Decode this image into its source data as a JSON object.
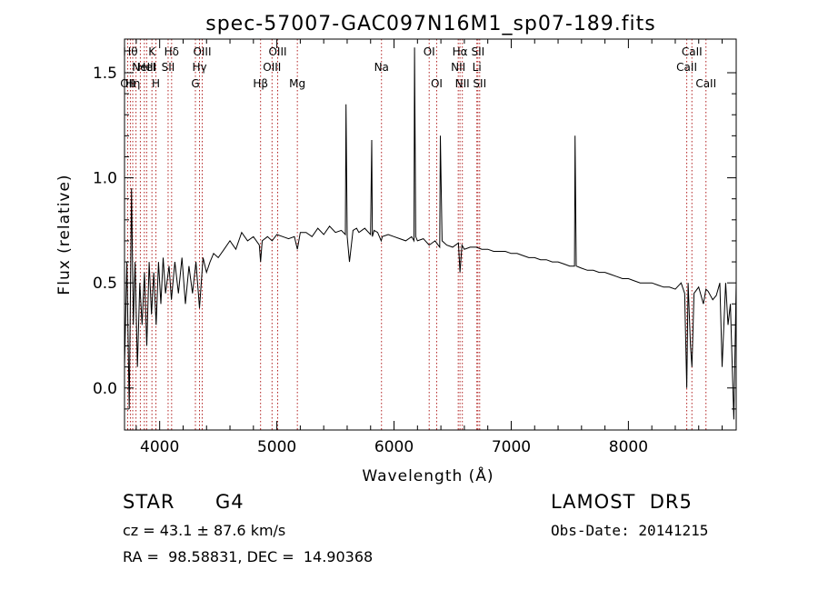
{
  "chart_data": {
    "type": "line",
    "title": "spec-57007-GAC097N16M1_sp07-189.fits",
    "xlabel": "Wavelength (Å)",
    "ylabel": "Flux (relative)",
    "xlim": [
      3700,
      8920
    ],
    "ylim": [
      -0.2,
      1.66
    ],
    "x_ticks": [
      4000,
      5000,
      6000,
      7000,
      8000
    ],
    "y_ticks": [
      0.0,
      0.5,
      1.0,
      1.5
    ],
    "x_tick_labels": [
      "4000",
      "5000",
      "6000",
      "7000",
      "8000"
    ],
    "y_tick_labels": [
      "0.0",
      "0.5",
      "1.0",
      "1.5"
    ],
    "grid": false,
    "series": [
      {
        "x": [
          3700,
          3720,
          3740,
          3760,
          3775,
          3790,
          3810,
          3830,
          3850,
          3870,
          3890,
          3910,
          3930,
          3950,
          3970,
          3990,
          4010,
          4030,
          4050,
          4080,
          4100,
          4130,
          4160,
          4190,
          4220,
          4250,
          4280,
          4310,
          4340,
          4370,
          4400,
          4430,
          4460,
          4500,
          4550,
          4600,
          4650,
          4700,
          4750,
          4800,
          4850,
          4861,
          4875,
          4920,
          4960,
          5000,
          5050,
          5100,
          5150,
          5175,
          5200,
          5250,
          5300,
          5350,
          5400,
          5450,
          5500,
          5550,
          5585,
          5590,
          5600,
          5620,
          5650,
          5680,
          5700,
          5750,
          5800,
          5810,
          5815,
          5830,
          5860,
          5890,
          5900,
          5950,
          6000,
          6050,
          6100,
          6150,
          6170,
          6175,
          6185,
          6200,
          6250,
          6300,
          6350,
          6390,
          6395,
          6410,
          6450,
          6500,
          6550,
          6563,
          6580,
          6600,
          6650,
          6700,
          6750,
          6800,
          6850,
          6900,
          6950,
          7000,
          7050,
          7100,
          7150,
          7200,
          7250,
          7300,
          7350,
          7400,
          7450,
          7500,
          7540,
          7545,
          7555,
          7600,
          7650,
          7700,
          7750,
          7800,
          7850,
          7900,
          7950,
          8000,
          8050,
          8100,
          8150,
          8200,
          8250,
          8300,
          8350,
          8400,
          8450,
          8480,
          8498,
          8510,
          8530,
          8542,
          8560,
          8600,
          8640,
          8662,
          8680,
          8720,
          8750,
          8780,
          8800,
          8830,
          8850,
          8870,
          8900,
          8920
        ],
        "y": [
          0.1,
          0.6,
          -0.1,
          0.95,
          0.3,
          0.6,
          0.1,
          0.5,
          0.3,
          0.55,
          0.2,
          0.6,
          0.35,
          0.55,
          0.3,
          0.6,
          0.4,
          0.62,
          0.45,
          0.58,
          0.42,
          0.6,
          0.45,
          0.62,
          0.4,
          0.58,
          0.45,
          0.6,
          0.38,
          0.62,
          0.55,
          0.6,
          0.64,
          0.62,
          0.66,
          0.7,
          0.66,
          0.74,
          0.7,
          0.72,
          0.68,
          0.6,
          0.7,
          0.72,
          0.7,
          0.73,
          0.72,
          0.71,
          0.72,
          0.66,
          0.74,
          0.74,
          0.72,
          0.76,
          0.73,
          0.77,
          0.74,
          0.75,
          0.73,
          1.35,
          0.72,
          0.6,
          0.75,
          0.76,
          0.74,
          0.76,
          0.73,
          1.18,
          0.72,
          0.75,
          0.74,
          0.7,
          0.72,
          0.73,
          0.72,
          0.71,
          0.7,
          0.72,
          0.7,
          1.62,
          0.72,
          0.7,
          0.71,
          0.68,
          0.7,
          0.67,
          1.2,
          0.7,
          0.68,
          0.67,
          0.69,
          0.55,
          0.68,
          0.66,
          0.67,
          0.67,
          0.66,
          0.66,
          0.65,
          0.65,
          0.65,
          0.64,
          0.64,
          0.63,
          0.62,
          0.62,
          0.61,
          0.61,
          0.6,
          0.6,
          0.59,
          0.58,
          0.58,
          1.2,
          0.58,
          0.57,
          0.56,
          0.56,
          0.55,
          0.55,
          0.54,
          0.53,
          0.52,
          0.52,
          0.51,
          0.5,
          0.5,
          0.5,
          0.49,
          0.48,
          0.48,
          0.47,
          0.5,
          0.45,
          0.0,
          0.5,
          0.2,
          0.1,
          0.45,
          0.48,
          0.4,
          0.47,
          0.46,
          0.42,
          0.44,
          0.5,
          0.1,
          0.5,
          0.3,
          0.4,
          -0.15,
          0.5
        ]
      }
    ],
    "line_markers": [
      {
        "wl": 3727,
        "label": "OII",
        "row": 3
      },
      {
        "wl": 3750,
        "label": "Hθ",
        "row": 1
      },
      {
        "wl": 3770,
        "label": "Hη",
        "row": 3
      },
      {
        "wl": 3798,
        "label": "",
        "row": 0
      },
      {
        "wl": 3835,
        "label": "",
        "row": 0
      },
      {
        "wl": 3869,
        "label": "NeIII",
        "row": 2
      },
      {
        "wl": 3889,
        "label": "HeI",
        "row": 2
      },
      {
        "wl": 3934,
        "label": "K",
        "row": 1
      },
      {
        "wl": 3968,
        "label": "H",
        "row": 3
      },
      {
        "wl": 4072,
        "label": "SII",
        "row": 2
      },
      {
        "wl": 4102,
        "label": "Hδ",
        "row": 1
      },
      {
        "wl": 4305,
        "label": "G",
        "row": 3
      },
      {
        "wl": 4340,
        "label": "Hγ",
        "row": 2
      },
      {
        "wl": 4363,
        "label": "OIII",
        "row": 1
      },
      {
        "wl": 4861,
        "label": "Hβ",
        "row": 3
      },
      {
        "wl": 4959,
        "label": "OIII",
        "row": 2
      },
      {
        "wl": 5007,
        "label": "OIII",
        "row": 1
      },
      {
        "wl": 5175,
        "label": "Mg",
        "row": 3
      },
      {
        "wl": 5893,
        "label": "Na",
        "row": 2
      },
      {
        "wl": 6300,
        "label": "OI",
        "row": 1
      },
      {
        "wl": 6364,
        "label": "OI",
        "row": 3
      },
      {
        "wl": 6548,
        "label": "NII",
        "row": 2
      },
      {
        "wl": 6563,
        "label": "Hα",
        "row": 1
      },
      {
        "wl": 6583,
        "label": "NII",
        "row": 3
      },
      {
        "wl": 6707,
        "label": "Li",
        "row": 2
      },
      {
        "wl": 6716,
        "label": "SII",
        "row": 1
      },
      {
        "wl": 6731,
        "label": "SII",
        "row": 3
      },
      {
        "wl": 8498,
        "label": "CaII",
        "row": 2
      },
      {
        "wl": 8542,
        "label": "CaII",
        "row": 1
      },
      {
        "wl": 8662,
        "label": "CaII",
        "row": 3
      }
    ]
  },
  "info": {
    "object_class": "STAR",
    "subclass": "G4",
    "survey": "LAMOST  DR5",
    "redshift_text": "cz = 43.1 ± 87.6 km/s",
    "obs_date": "Obs-Date: 20141215",
    "coords": "RA =  98.58831, DEC =  14.90368"
  }
}
